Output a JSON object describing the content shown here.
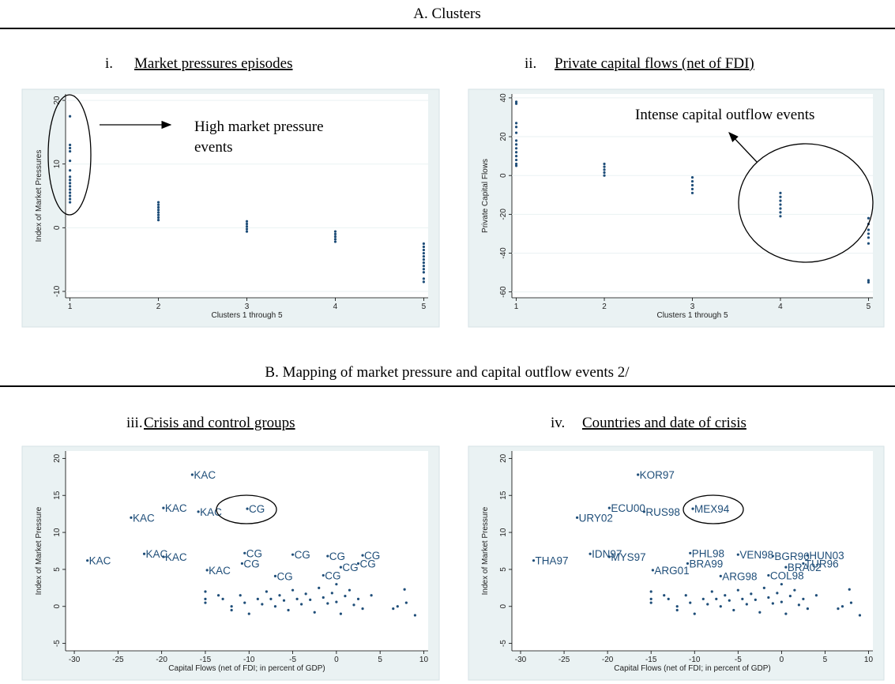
{
  "sections": [
    "A.  Clusters",
    "B.  Mapping of market pressure and capital outflow events  2/"
  ],
  "chart_data": [
    {
      "type": "scatter",
      "title_number": "i.",
      "title": "Market pressures episodes",
      "xlabel": "Clusters 1 through 5",
      "ylabel": "Index of Market Pressures",
      "annotation": [
        "High market pressure",
        "events"
      ],
      "x": [
        1,
        1,
        1,
        1,
        1,
        1,
        1,
        1,
        1,
        1,
        1,
        1,
        1,
        1,
        1,
        2,
        2,
        2,
        2,
        2,
        2,
        2,
        2,
        3,
        3,
        3,
        3,
        3,
        4,
        4,
        4,
        4,
        4,
        5,
        5,
        5,
        5,
        5,
        5,
        5,
        5,
        5,
        5,
        5,
        5
      ],
      "values": [
        17.5,
        13,
        12.5,
        12,
        10.5,
        9,
        8,
        7.5,
        7,
        6.5,
        6,
        5.5,
        5,
        4.5,
        4,
        4,
        3.6,
        3.2,
        2.8,
        2.4,
        2,
        1.6,
        1.2,
        1,
        0.6,
        0.2,
        -0.2,
        -0.6,
        -0.6,
        -1,
        -1.4,
        -1.8,
        -2.2,
        -2.5,
        -3,
        -3.5,
        -4,
        -4.5,
        -5,
        -5.5,
        -6,
        -6.5,
        -7,
        -8,
        -8.5
      ],
      "xlim": [
        0.95,
        5.05
      ],
      "ylim": [
        -11,
        21
      ],
      "xticks": [
        1,
        2,
        3,
        4,
        5
      ],
      "yticks": [
        -10,
        0,
        10,
        20
      ],
      "grid": true,
      "color": "#1f4e79"
    },
    {
      "type": "scatter",
      "title_number": "ii.",
      "title": "Private capital flows (net of FDI)",
      "xlabel": "Clusters 1 through 5",
      "ylabel": "Private Capital Flows",
      "annotation": [
        "Intense capital outflow events"
      ],
      "x": [
        1,
        1,
        1,
        1,
        1,
        1,
        1,
        1,
        1,
        1,
        1,
        1,
        1,
        2,
        2,
        2,
        2,
        2,
        3,
        3,
        3,
        3,
        3,
        4,
        4,
        4,
        4,
        4,
        4,
        4,
        5,
        5,
        5,
        5,
        5,
        5,
        5,
        5
      ],
      "values": [
        38,
        37,
        27,
        25,
        22,
        18,
        16,
        14,
        12,
        10,
        8,
        6,
        5,
        6,
        4.5,
        3,
        1.5,
        0,
        -1,
        -3,
        -5,
        -7,
        -9,
        -9,
        -11,
        -13,
        -15,
        -17,
        -19,
        -21,
        -22,
        -25,
        -28,
        -30,
        -32,
        -35,
        -54,
        -55
      ],
      "xlim": [
        0.95,
        5.05
      ],
      "ylim": [
        -63,
        42
      ],
      "xticks": [
        1,
        2,
        3,
        4,
        5
      ],
      "yticks": [
        -60,
        -40,
        -20,
        0,
        20,
        40
      ],
      "grid": true,
      "color": "#1f4e79"
    },
    {
      "type": "scatter",
      "title_number": "iii.",
      "title": "Crisis and control groups",
      "xlabel": "Capital Flows (net of FDI; in percent of GDP)",
      "ylabel": "Index of Market Pressure",
      "x": [
        -16.5,
        -19.8,
        -23.5,
        -15.8,
        -10.2,
        -28.5,
        -22,
        -19.8,
        -14.8,
        -10.5,
        -5,
        -1,
        3,
        -10.8,
        -7,
        -1.5,
        2.5,
        0.5,
        -15,
        -15,
        -15,
        -13.5,
        -13,
        -12,
        -12,
        -11,
        -10.5,
        -10,
        -9,
        -8.5,
        -8,
        -7.5,
        -7,
        -6.5,
        -6,
        -5.5,
        -5,
        -4.5,
        -4,
        -3.5,
        -3,
        -2.5,
        -2,
        -1.5,
        -1,
        -0.5,
        0,
        0,
        0.5,
        1,
        1.5,
        2,
        2.5,
        3,
        4,
        7,
        7.8,
        8,
        9,
        6.5
      ],
      "values": [
        17.8,
        13.3,
        12,
        12.8,
        13.2,
        6.2,
        7.1,
        6.7,
        4.9,
        7.2,
        7,
        6.8,
        6.9,
        5.8,
        4.1,
        4.2,
        5.8,
        5.3,
        2,
        1,
        0.5,
        1.5,
        1,
        0,
        -0.5,
        1.5,
        0.5,
        -1,
        1,
        0.3,
        2,
        1,
        0,
        1.5,
        0.8,
        -0.5,
        2.2,
        1,
        0.3,
        1.7,
        0.9,
        -0.8,
        2.5,
        1.2,
        0.4,
        1.8,
        3,
        0.6,
        -1,
        1.4,
        2.2,
        0.2,
        1,
        -0.3,
        1.5,
        0,
        2.3,
        0.5,
        -1.2,
        -0.3
      ],
      "labels": [
        "KAC",
        "KAC",
        "KAC",
        "KAC",
        "CG",
        "KAC",
        "KAC",
        "KAC",
        "KAC",
        "CG",
        "CG",
        "CG",
        "CG",
        "CG",
        "CG",
        "CG",
        "CG",
        "CG",
        null,
        null,
        null,
        null,
        null,
        null,
        null,
        null,
        null,
        null,
        null,
        null,
        null,
        null,
        null,
        null,
        null,
        null,
        null,
        null,
        null,
        null,
        null,
        null,
        null,
        null,
        null,
        null,
        null,
        null,
        null,
        null,
        null,
        null,
        null,
        null,
        null,
        null,
        null,
        null,
        null,
        null
      ],
      "xlim": [
        -31,
        10.5
      ],
      "ylim": [
        -6,
        21
      ],
      "xticks": [
        -30,
        -25,
        -20,
        -15,
        -10,
        -5,
        0,
        5,
        10
      ],
      "yticks": [
        -5,
        0,
        5,
        10,
        15,
        20
      ],
      "grid": false,
      "color": "#1f4e79"
    },
    {
      "type": "scatter",
      "title_number": "iv.",
      "title": "Countries and date of crisis",
      "xlabel": "Capital Flows (net of FDI; in percent of GDP)",
      "ylabel": "Index of Market Pressure",
      "x": [
        -16.5,
        -19.8,
        -23.5,
        -15.8,
        -10.2,
        -28.5,
        -22,
        -19.8,
        -14.8,
        -10.5,
        -5,
        -1,
        3,
        -10.8,
        -7,
        -1.5,
        2.5,
        0.5,
        -15,
        -15,
        -15,
        -13.5,
        -13,
        -12,
        -12,
        -11,
        -10.5,
        -10,
        -9,
        -8.5,
        -8,
        -7.5,
        -7,
        -6.5,
        -6,
        -5.5,
        -5,
        -4.5,
        -4,
        -3.5,
        -3,
        -2.5,
        -2,
        -1.5,
        -1,
        -0.5,
        0,
        0,
        0.5,
        1,
        1.5,
        2,
        2.5,
        3,
        4,
        7,
        7.8,
        8,
        9,
        6.5
      ],
      "values": [
        17.8,
        13.3,
        12,
        12.8,
        13.2,
        6.2,
        7.1,
        6.7,
        4.9,
        7.2,
        7,
        6.8,
        6.9,
        5.8,
        4.1,
        4.2,
        5.8,
        5.3,
        2,
        1,
        0.5,
        1.5,
        1,
        0,
        -0.5,
        1.5,
        0.5,
        -1,
        1,
        0.3,
        2,
        1,
        0,
        1.5,
        0.8,
        -0.5,
        2.2,
        1,
        0.3,
        1.7,
        0.9,
        -0.8,
        2.5,
        1.2,
        0.4,
        1.8,
        3,
        0.6,
        -1,
        1.4,
        2.2,
        0.2,
        1,
        -0.3,
        1.5,
        0,
        2.3,
        0.5,
        -1.2,
        -0.3
      ],
      "labels": [
        "KOR97",
        "ECU00",
        "URY02",
        "RUS98",
        "MEX94",
        "THA97",
        "IDN97",
        "MYS97",
        "ARG01",
        "PHL98",
        "VEN98",
        "BGR96",
        "HUN03",
        "BRA99",
        "ARG98",
        "COL98",
        "TUR96",
        "BRA02",
        null,
        null,
        null,
        null,
        null,
        null,
        null,
        null,
        null,
        null,
        null,
        null,
        null,
        null,
        null,
        null,
        null,
        null,
        null,
        null,
        null,
        null,
        null,
        null,
        null,
        null,
        null,
        null,
        null,
        null,
        null,
        null,
        null,
        null,
        null,
        null,
        null,
        null,
        null,
        null,
        null,
        null
      ],
      "xlim": [
        -31,
        10.5
      ],
      "ylim": [
        -6,
        21
      ],
      "xticks": [
        -30,
        -25,
        -20,
        -15,
        -10,
        -5,
        0,
        5,
        10
      ],
      "yticks": [
        -5,
        0,
        5,
        10,
        15,
        20
      ],
      "grid": false,
      "color": "#1f4e79"
    }
  ]
}
